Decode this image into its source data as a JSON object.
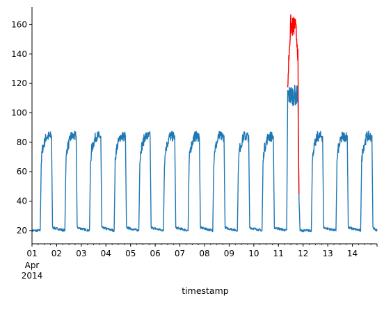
{
  "chart_data": {
    "type": "line",
    "title": "",
    "xlabel": "timestamp",
    "ylabel": "",
    "ylim": [
      11,
      172
    ],
    "xlim": [
      "2014-04-01",
      "2014-04-15"
    ],
    "grid": false,
    "y_ticks": [
      20,
      40,
      60,
      80,
      100,
      120,
      140,
      160
    ],
    "x_ticks": [
      {
        "date": "2014-04-01",
        "label": "01"
      },
      {
        "date": "2014-04-02",
        "label": "02"
      },
      {
        "date": "2014-04-03",
        "label": "03"
      },
      {
        "date": "2014-04-04",
        "label": "04"
      },
      {
        "date": "2014-04-05",
        "label": "05"
      },
      {
        "date": "2014-04-06",
        "label": "06"
      },
      {
        "date": "2014-04-07",
        "label": "07"
      },
      {
        "date": "2014-04-08",
        "label": "08"
      },
      {
        "date": "2014-04-09",
        "label": "09"
      },
      {
        "date": "2014-04-10",
        "label": "10"
      },
      {
        "date": "2014-04-11",
        "label": "11"
      },
      {
        "date": "2014-04-12",
        "label": "12"
      },
      {
        "date": "2014-04-13",
        "label": "13"
      },
      {
        "date": "2014-04-14",
        "label": "14"
      }
    ],
    "x_tick_sublabels": [
      "Apr",
      "2014"
    ],
    "series": [
      {
        "color": "#1f77b4",
        "points": [
          [
            "2014-04-01 00:00",
            20
          ],
          [
            "2014-04-01 08:00",
            20
          ],
          [
            "2014-04-01 09:00",
            66
          ],
          [
            "2014-04-01 10:00",
            75
          ],
          [
            "2014-04-01 14:00",
            84
          ],
          [
            "2014-04-01 19:00",
            84
          ],
          [
            "2014-04-01 20:00",
            22
          ],
          [
            "2014-04-02 08:00",
            20
          ],
          [
            "2014-04-02 09:00",
            66
          ],
          [
            "2014-04-02 10:00",
            75
          ],
          [
            "2014-04-02 14:00",
            84
          ],
          [
            "2014-04-02 19:00",
            84
          ],
          [
            "2014-04-02 20:00",
            22
          ],
          [
            "2014-04-03 08:00",
            20
          ],
          [
            "2014-04-03 09:00",
            66
          ],
          [
            "2014-04-03 10:00",
            75
          ],
          [
            "2014-04-03 14:00",
            84
          ],
          [
            "2014-04-03 19:00",
            84
          ],
          [
            "2014-04-03 20:00",
            22
          ],
          [
            "2014-04-04 08:00",
            20
          ],
          [
            "2014-04-04 09:00",
            66
          ],
          [
            "2014-04-04 10:00",
            75
          ],
          [
            "2014-04-04 14:00",
            84
          ],
          [
            "2014-04-04 19:00",
            84
          ],
          [
            "2014-04-04 20:00",
            22
          ],
          [
            "2014-04-05 08:00",
            20
          ],
          [
            "2014-04-05 09:00",
            66
          ],
          [
            "2014-04-05 10:00",
            75
          ],
          [
            "2014-04-05 14:00",
            84
          ],
          [
            "2014-04-05 19:00",
            84
          ],
          [
            "2014-04-05 20:00",
            22
          ],
          [
            "2014-04-06 08:00",
            20
          ],
          [
            "2014-04-06 09:00",
            66
          ],
          [
            "2014-04-06 10:00",
            75
          ],
          [
            "2014-04-06 14:00",
            84
          ],
          [
            "2014-04-06 19:00",
            84
          ],
          [
            "2014-04-06 20:00",
            22
          ],
          [
            "2014-04-07 08:00",
            20
          ],
          [
            "2014-04-07 09:00",
            66
          ],
          [
            "2014-04-07 10:00",
            75
          ],
          [
            "2014-04-07 14:00",
            84
          ],
          [
            "2014-04-07 19:00",
            84
          ],
          [
            "2014-04-07 20:00",
            22
          ],
          [
            "2014-04-08 08:00",
            20
          ],
          [
            "2014-04-08 09:00",
            66
          ],
          [
            "2014-04-08 10:00",
            75
          ],
          [
            "2014-04-08 14:00",
            84
          ],
          [
            "2014-04-08 19:00",
            84
          ],
          [
            "2014-04-08 20:00",
            22
          ],
          [
            "2014-04-09 08:00",
            20
          ],
          [
            "2014-04-09 09:00",
            66
          ],
          [
            "2014-04-09 10:00",
            75
          ],
          [
            "2014-04-09 14:00",
            84
          ],
          [
            "2014-04-09 19:00",
            84
          ],
          [
            "2014-04-09 20:00",
            22
          ],
          [
            "2014-04-10 08:00",
            20
          ],
          [
            "2014-04-10 09:00",
            66
          ],
          [
            "2014-04-10 10:00",
            75
          ],
          [
            "2014-04-10 14:00",
            84
          ],
          [
            "2014-04-10 19:00",
            84
          ],
          [
            "2014-04-10 20:00",
            22
          ],
          [
            "2014-04-11 08:00",
            20
          ],
          [
            "2014-04-11 09:00",
            112
          ],
          [
            "2014-04-11 19:00",
            112
          ],
          [
            "2014-04-11 20:00",
            42
          ],
          [
            "2014-04-11 21:00",
            20
          ],
          [
            "2014-04-12 08:00",
            20
          ],
          [
            "2014-04-12 09:00",
            66
          ],
          [
            "2014-04-12 10:00",
            75
          ],
          [
            "2014-04-12 14:00",
            84
          ],
          [
            "2014-04-12 19:00",
            84
          ],
          [
            "2014-04-12 20:00",
            22
          ],
          [
            "2014-04-13 08:00",
            20
          ],
          [
            "2014-04-13 09:00",
            66
          ],
          [
            "2014-04-13 10:00",
            75
          ],
          [
            "2014-04-13 14:00",
            84
          ],
          [
            "2014-04-13 19:00",
            84
          ],
          [
            "2014-04-13 20:00",
            22
          ],
          [
            "2014-04-14 08:00",
            20
          ],
          [
            "2014-04-14 09:00",
            66
          ],
          [
            "2014-04-14 10:00",
            75
          ],
          [
            "2014-04-14 14:00",
            84
          ],
          [
            "2014-04-14 19:00",
            84
          ],
          [
            "2014-04-14 20:00",
            22
          ],
          [
            "2014-04-15 00:00",
            20
          ]
        ]
      },
      {
        "color": "#ff0000",
        "points": [
          [
            "2014-04-11 09:00",
            118
          ],
          [
            "2014-04-11 10:00",
            135
          ],
          [
            "2014-04-11 11:00",
            150
          ],
          [
            "2014-04-11 12:00",
            160
          ],
          [
            "2014-04-11 14:00",
            158
          ],
          [
            "2014-04-11 16:00",
            160
          ],
          [
            "2014-04-11 18:00",
            150
          ],
          [
            "2014-04-11 19:00",
            140
          ],
          [
            "2014-04-11 19:30",
            70
          ],
          [
            "2014-04-11 20:00",
            45
          ]
        ]
      }
    ]
  }
}
